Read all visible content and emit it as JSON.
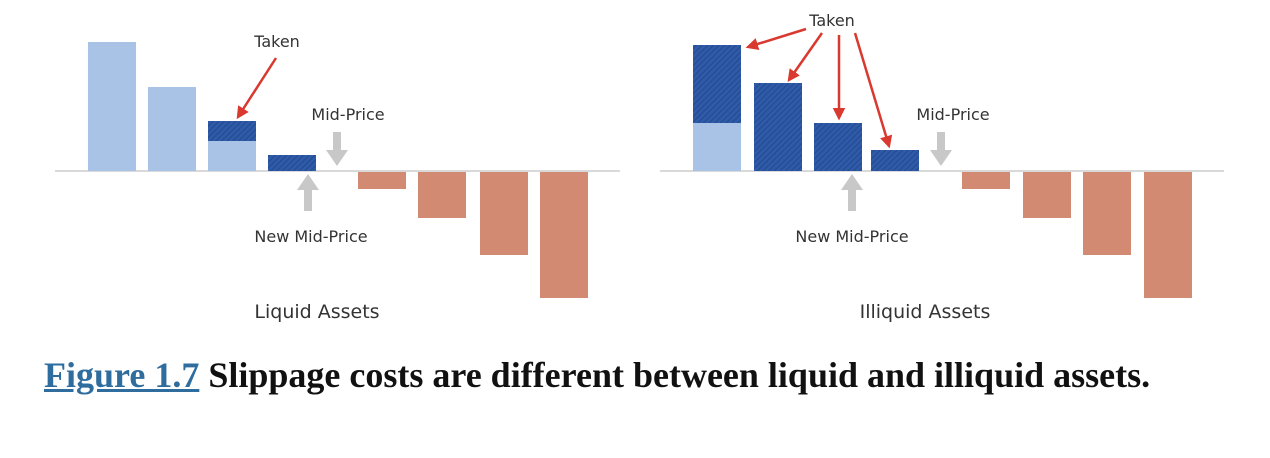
{
  "colors": {
    "bid_light": "#a9c3e6",
    "bid_taken": "#2e5aa7",
    "ask": "#d28a72",
    "arrow_red": "#d9392f",
    "arrow_grey": "#c8c8c8",
    "baseline": "#d9d9d9",
    "caption_link": "#2f6d9f"
  },
  "panels": [
    {
      "title": "Liquid Assets",
      "taken_label": "Taken",
      "mid_price_label": "Mid-Price",
      "new_mid_price_label": "New Mid-Price",
      "bids": [
        {
          "depth": 1.0,
          "taken": 0.0
        },
        {
          "depth": 0.65,
          "taken": 0.0
        },
        {
          "depth": 0.38,
          "taken": 0.15
        },
        {
          "depth": 0.12,
          "taken": 0.12
        }
      ],
      "asks": [
        0.14,
        0.37,
        0.66,
        1.0
      ]
    },
    {
      "title": "Illiquid Assets",
      "taken_label": "Taken",
      "mid_price_label": "Mid-Price",
      "new_mid_price_label": "New Mid-Price",
      "bids": [
        {
          "depth": 1.0,
          "taken": 0.62
        },
        {
          "depth": 0.69,
          "taken": 0.69
        },
        {
          "depth": 0.38,
          "taken": 0.38
        },
        {
          "depth": 0.16,
          "taken": 0.16
        }
      ],
      "asks": [
        0.14,
        0.37,
        0.66,
        1.0
      ]
    }
  ],
  "caption": {
    "figure_ref": "Figure 1.7",
    "text": "Slippage costs are different between liquid and illiquid assets."
  }
}
